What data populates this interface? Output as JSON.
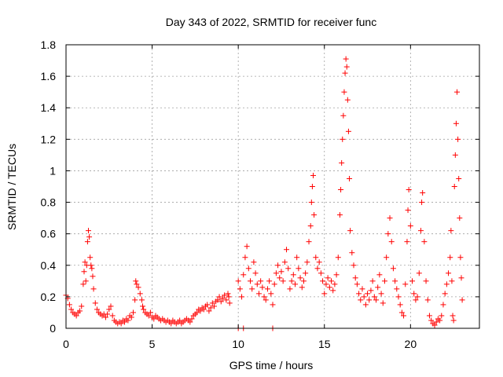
{
  "chart_data": {
    "type": "scatter",
    "title": "Day 343 of 2022, SRMTID for receiver func",
    "xlabel": "GPS time / hours",
    "ylabel": "SRMTID / TECUs",
    "xlim": [
      0,
      24
    ],
    "ylim": [
      0,
      1.8
    ],
    "xticks": [
      0,
      5,
      10,
      15,
      20
    ],
    "yticks": [
      0,
      0.2,
      0.4,
      0.6,
      0.8,
      1,
      1.2,
      1.4,
      1.6,
      1.8
    ],
    "xtick_labels": [
      "0",
      "5",
      "10",
      "15",
      "20"
    ],
    "ytick_labels": [
      "0",
      "0.2",
      "0.4",
      "0.6",
      "0.8",
      "1",
      "1.2",
      "1.4",
      "1.6",
      "1.8"
    ],
    "grid": true,
    "marker": "plus",
    "color": "#ff0000",
    "series": [
      {
        "name": "SRMTID",
        "points": [
          [
            0.0,
            0.21
          ],
          [
            0.1,
            0.19
          ],
          [
            0.2,
            0.15
          ],
          [
            0.3,
            0.12
          ],
          [
            0.4,
            0.1
          ],
          [
            0.5,
            0.09
          ],
          [
            0.6,
            0.08
          ],
          [
            0.7,
            0.1
          ],
          [
            0.8,
            0.11
          ],
          [
            0.9,
            0.14
          ],
          [
            1.0,
            0.28
          ],
          [
            1.05,
            0.36
          ],
          [
            1.1,
            0.42
          ],
          [
            1.15,
            0.3
          ],
          [
            1.2,
            0.4
          ],
          [
            1.25,
            0.55
          ],
          [
            1.3,
            0.62
          ],
          [
            1.35,
            0.58
          ],
          [
            1.4,
            0.45
          ],
          [
            1.45,
            0.4
          ],
          [
            1.5,
            0.38
          ],
          [
            1.55,
            0.33
          ],
          [
            1.6,
            0.25
          ],
          [
            1.7,
            0.16
          ],
          [
            1.8,
            0.12
          ],
          [
            1.9,
            0.1
          ],
          [
            2.0,
            0.09
          ],
          [
            2.1,
            0.08
          ],
          [
            2.2,
            0.09
          ],
          [
            2.3,
            0.07
          ],
          [
            2.4,
            0.09
          ],
          [
            2.5,
            0.12
          ],
          [
            2.6,
            0.14
          ],
          [
            2.7,
            0.08
          ],
          [
            2.8,
            0.05
          ],
          [
            2.9,
            0.04
          ],
          [
            3.0,
            0.03
          ],
          [
            3.1,
            0.04
          ],
          [
            3.2,
            0.03
          ],
          [
            3.3,
            0.05
          ],
          [
            3.4,
            0.04
          ],
          [
            3.5,
            0.06
          ],
          [
            3.6,
            0.05
          ],
          [
            3.7,
            0.08
          ],
          [
            3.8,
            0.07
          ],
          [
            3.9,
            0.1
          ],
          [
            4.0,
            0.18
          ],
          [
            4.05,
            0.3
          ],
          [
            4.1,
            0.28
          ],
          [
            4.2,
            0.26
          ],
          [
            4.3,
            0.22
          ],
          [
            4.4,
            0.18
          ],
          [
            4.45,
            0.14
          ],
          [
            4.5,
            0.12
          ],
          [
            4.6,
            0.1
          ],
          [
            4.7,
            0.09
          ],
          [
            4.8,
            0.08
          ],
          [
            4.9,
            0.1
          ],
          [
            5.0,
            0.07
          ],
          [
            5.1,
            0.06
          ],
          [
            5.2,
            0.08
          ],
          [
            5.3,
            0.07
          ],
          [
            5.4,
            0.06
          ],
          [
            5.5,
            0.05
          ],
          [
            5.6,
            0.06
          ],
          [
            5.7,
            0.05
          ],
          [
            5.8,
            0.04
          ],
          [
            5.9,
            0.05
          ],
          [
            6.0,
            0.04
          ],
          [
            6.1,
            0.03
          ],
          [
            6.2,
            0.05
          ],
          [
            6.3,
            0.04
          ],
          [
            6.4,
            0.03
          ],
          [
            6.5,
            0.04
          ],
          [
            6.6,
            0.05
          ],
          [
            6.7,
            0.03
          ],
          [
            6.8,
            0.04
          ],
          [
            6.9,
            0.05
          ],
          [
            7.0,
            0.06
          ],
          [
            7.1,
            0.05
          ],
          [
            7.2,
            0.04
          ],
          [
            7.3,
            0.06
          ],
          [
            7.4,
            0.08
          ],
          [
            7.5,
            0.09
          ],
          [
            7.6,
            0.1
          ],
          [
            7.7,
            0.12
          ],
          [
            7.8,
            0.11
          ],
          [
            7.9,
            0.13
          ],
          [
            8.0,
            0.12
          ],
          [
            8.1,
            0.14
          ],
          [
            8.2,
            0.15
          ],
          [
            8.3,
            0.11
          ],
          [
            8.4,
            0.13
          ],
          [
            8.5,
            0.16
          ],
          [
            8.6,
            0.14
          ],
          [
            8.7,
            0.17
          ],
          [
            8.8,
            0.18
          ],
          [
            8.9,
            0.2
          ],
          [
            9.0,
            0.17
          ],
          [
            9.1,
            0.19
          ],
          [
            9.2,
            0.21
          ],
          [
            9.3,
            0.18
          ],
          [
            9.4,
            0.22
          ],
          [
            9.45,
            0.2
          ],
          [
            9.5,
            0.16
          ],
          [
            10.0,
            0.0
          ],
          [
            10.3,
            0.0
          ],
          [
            12.0,
            0.0
          ],
          [
            10.0,
            0.3
          ],
          [
            10.1,
            0.25
          ],
          [
            10.2,
            0.2
          ],
          [
            10.3,
            0.34
          ],
          [
            10.4,
            0.45
          ],
          [
            10.5,
            0.52
          ],
          [
            10.6,
            0.38
          ],
          [
            10.7,
            0.3
          ],
          [
            10.8,
            0.25
          ],
          [
            10.9,
            0.42
          ],
          [
            11.0,
            0.35
          ],
          [
            11.1,
            0.28
          ],
          [
            11.2,
            0.22
          ],
          [
            11.3,
            0.3
          ],
          [
            11.4,
            0.26
          ],
          [
            11.5,
            0.2
          ],
          [
            11.6,
            0.18
          ],
          [
            11.7,
            0.25
          ],
          [
            11.8,
            0.3
          ],
          [
            11.9,
            0.22
          ],
          [
            12.0,
            0.15
          ],
          [
            12.1,
            0.28
          ],
          [
            12.2,
            0.35
          ],
          [
            12.3,
            0.4
          ],
          [
            12.4,
            0.32
          ],
          [
            12.5,
            0.36
          ],
          [
            12.6,
            0.3
          ],
          [
            12.7,
            0.42
          ],
          [
            12.8,
            0.5
          ],
          [
            12.9,
            0.38
          ],
          [
            13.0,
            0.25
          ],
          [
            13.1,
            0.3
          ],
          [
            13.2,
            0.34
          ],
          [
            13.3,
            0.28
          ],
          [
            13.4,
            0.45
          ],
          [
            13.5,
            0.38
          ],
          [
            13.6,
            0.32
          ],
          [
            13.7,
            0.26
          ],
          [
            13.8,
            0.3
          ],
          [
            13.9,
            0.35
          ],
          [
            14.0,
            0.42
          ],
          [
            14.1,
            0.55
          ],
          [
            14.2,
            0.65
          ],
          [
            14.25,
            0.8
          ],
          [
            14.3,
            0.9
          ],
          [
            14.35,
            0.97
          ],
          [
            14.4,
            0.72
          ],
          [
            14.5,
            0.45
          ],
          [
            14.6,
            0.38
          ],
          [
            14.7,
            0.42
          ],
          [
            14.8,
            0.35
          ],
          [
            14.9,
            0.3
          ],
          [
            15.0,
            0.22
          ],
          [
            15.1,
            0.28
          ],
          [
            15.2,
            0.32
          ],
          [
            15.3,
            0.26
          ],
          [
            15.4,
            0.3
          ],
          [
            15.5,
            0.24
          ],
          [
            15.6,
            0.28
          ],
          [
            15.7,
            0.34
          ],
          [
            15.8,
            0.45
          ],
          [
            15.9,
            0.72
          ],
          [
            15.95,
            0.88
          ],
          [
            16.0,
            1.05
          ],
          [
            16.05,
            1.2
          ],
          [
            16.1,
            1.35
          ],
          [
            16.15,
            1.5
          ],
          [
            16.2,
            1.62
          ],
          [
            16.25,
            1.71
          ],
          [
            16.3,
            1.66
          ],
          [
            16.35,
            1.45
          ],
          [
            16.4,
            1.25
          ],
          [
            16.45,
            0.95
          ],
          [
            16.5,
            0.62
          ],
          [
            16.6,
            0.48
          ],
          [
            16.7,
            0.4
          ],
          [
            16.8,
            0.32
          ],
          [
            16.9,
            0.28
          ],
          [
            17.0,
            0.22
          ],
          [
            17.1,
            0.18
          ],
          [
            17.2,
            0.25
          ],
          [
            17.3,
            0.2
          ],
          [
            17.4,
            0.15
          ],
          [
            17.5,
            0.22
          ],
          [
            17.6,
            0.18
          ],
          [
            17.7,
            0.24
          ],
          [
            17.8,
            0.3
          ],
          [
            17.9,
            0.2
          ],
          [
            18.0,
            0.18
          ],
          [
            18.1,
            0.26
          ],
          [
            18.2,
            0.34
          ],
          [
            18.3,
            0.22
          ],
          [
            18.4,
            0.16
          ],
          [
            18.5,
            0.3
          ],
          [
            18.6,
            0.45
          ],
          [
            18.7,
            0.6
          ],
          [
            18.8,
            0.7
          ],
          [
            18.9,
            0.55
          ],
          [
            19.0,
            0.38
          ],
          [
            19.1,
            0.3
          ],
          [
            19.2,
            0.25
          ],
          [
            19.3,
            0.2
          ],
          [
            19.4,
            0.15
          ],
          [
            19.5,
            0.1
          ],
          [
            19.6,
            0.08
          ],
          [
            19.7,
            0.28
          ],
          [
            19.8,
            0.55
          ],
          [
            19.85,
            0.75
          ],
          [
            19.9,
            0.88
          ],
          [
            20.0,
            0.65
          ],
          [
            20.1,
            0.3
          ],
          [
            20.2,
            0.22
          ],
          [
            20.3,
            0.18
          ],
          [
            20.4,
            0.2
          ],
          [
            20.5,
            0.35
          ],
          [
            20.6,
            0.62
          ],
          [
            20.65,
            0.8
          ],
          [
            20.7,
            0.86
          ],
          [
            20.8,
            0.55
          ],
          [
            20.9,
            0.3
          ],
          [
            21.0,
            0.18
          ],
          [
            21.1,
            0.08
          ],
          [
            21.2,
            0.05
          ],
          [
            21.3,
            0.03
          ],
          [
            21.4,
            0.02
          ],
          [
            21.5,
            0.04
          ],
          [
            21.6,
            0.06
          ],
          [
            21.7,
            0.05
          ],
          [
            21.8,
            0.08
          ],
          [
            21.9,
            0.15
          ],
          [
            22.0,
            0.22
          ],
          [
            22.1,
            0.28
          ],
          [
            22.2,
            0.35
          ],
          [
            22.3,
            0.45
          ],
          [
            22.35,
            0.62
          ],
          [
            22.4,
            0.3
          ],
          [
            22.45,
            0.08
          ],
          [
            22.5,
            0.05
          ],
          [
            22.55,
            0.9
          ],
          [
            22.6,
            1.1
          ],
          [
            22.65,
            1.3
          ],
          [
            22.7,
            1.5
          ],
          [
            22.75,
            1.2
          ],
          [
            22.8,
            0.95
          ],
          [
            22.85,
            0.7
          ],
          [
            22.9,
            0.45
          ],
          [
            22.95,
            0.32
          ],
          [
            23.0,
            0.18
          ]
        ]
      }
    ]
  }
}
